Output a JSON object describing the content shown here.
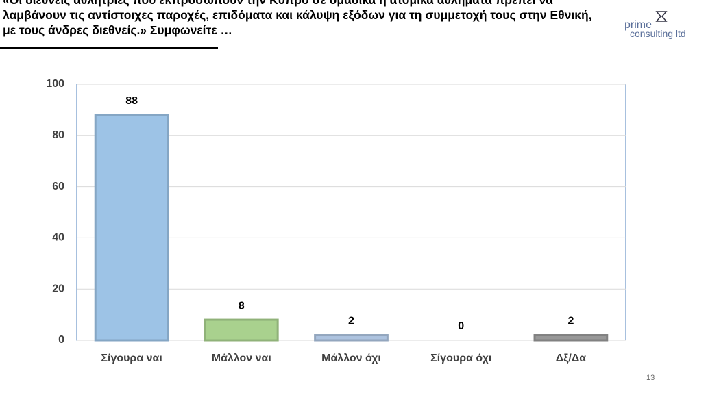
{
  "chart_data": {
    "type": "bar",
    "title": "«Οι διεθνείς αθλήτριες που εκπροσωπούν την Κύπρο σε ομαδικά ή ατομικά αθλήματα πρέπει να λαμβάνουν τις αντίστοιχες παροχές, επιδόματα και κάλυψη εξόδων για τη συμμετοχή τους στην Εθνική, με τους άνδρες διεθνείς.» Συμφωνείτε …",
    "categories": [
      "Σίγουρα ναι",
      "Μάλλον ναι",
      "Μάλλον όχι",
      "Σίγουρα όχι",
      "Δξ/Δα"
    ],
    "values": [
      88,
      8,
      2,
      0,
      2
    ],
    "colors": [
      "#9dc3e6",
      "#a9d18e",
      "#adc3df",
      "#9dc3e6",
      "#989898"
    ],
    "ylim": [
      0,
      100
    ],
    "yticks": [
      0,
      20,
      40,
      60,
      80,
      100
    ],
    "grid": true
  },
  "logo": {
    "name": "prime",
    "subtitle": "consulting ltd"
  },
  "page_number": 13
}
